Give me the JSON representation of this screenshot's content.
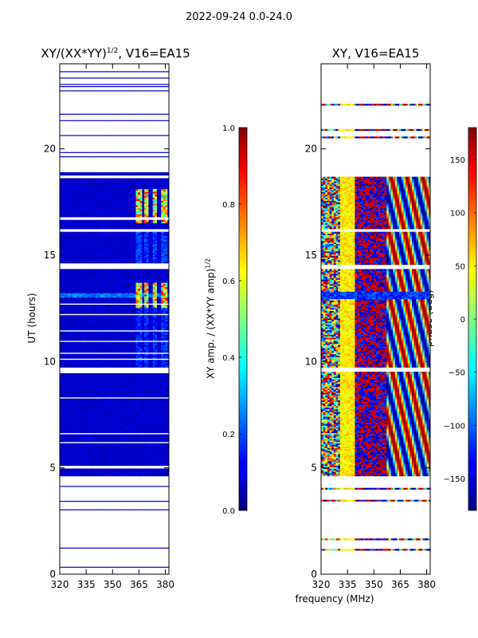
{
  "suptitle": "2022-09-24 0.0-24.0",
  "chart_data": [
    {
      "type": "heatmap",
      "id": "amp-panel",
      "title_prefix": "XY/(XX*YY)",
      "title_exponent": "1/2",
      "title_suffix": ", V16=EA15",
      "xlabel": "",
      "ylabel": "UT (hours)",
      "xlim": [
        320,
        382
      ],
      "ylim": [
        0,
        24
      ],
      "xticks": [
        320,
        335,
        350,
        365,
        380
      ],
      "yticks": [
        0,
        5,
        10,
        15,
        20
      ],
      "colorbar": {
        "label_main": "XY amp. / (XX*YY amp)",
        "label_exponent": "1/2",
        "range": [
          0.0,
          1.0
        ],
        "ticks": [
          "0.0",
          "0.2",
          "0.4",
          "0.6",
          "0.8",
          "1.0"
        ]
      },
      "observed_intervals_hours": [
        [
          4.6,
          9.4
        ],
        [
          9.7,
          14.3
        ],
        [
          14.5,
          16.1
        ],
        [
          16.2,
          16.6
        ],
        [
          16.8,
          18.6
        ],
        [
          18.7,
          18.9
        ]
      ],
      "high_amp_freq_bands_mhz": [
        [
          362,
          366
        ],
        [
          367,
          370
        ],
        [
          372,
          375
        ],
        [
          377,
          380
        ]
      ],
      "high_amp_time_windows_hours": [
        [
          12.5,
          13.7
        ],
        [
          16.5,
          18.1
        ]
      ],
      "description_values": {
        "background_amp": 0.05,
        "peak_amp": 0.9
      }
    },
    {
      "type": "heatmap",
      "id": "phase-panel",
      "title": "XY, V16=EA15",
      "xlabel": "frequency (MHz)",
      "ylabel": "",
      "xlim": [
        320,
        382
      ],
      "ylim": [
        0,
        24
      ],
      "xticks": [
        320,
        335,
        350,
        365,
        380
      ],
      "yticks": [
        0,
        5,
        10,
        15,
        20
      ],
      "colorbar": {
        "label_main": "phase (deg)",
        "range": [
          -180,
          180
        ],
        "ticks": [
          "−150",
          "−100",
          "−50",
          "0",
          "50",
          "100",
          "150"
        ]
      },
      "observed_intervals_hours": [
        [
          4.6,
          9.4
        ],
        [
          9.7,
          14.3
        ],
        [
          14.5,
          16.1
        ],
        [
          16.2,
          18.6
        ]
      ],
      "stable_phase_band_mhz": [
        330,
        338
      ],
      "stable_phase_deg": 40
    }
  ]
}
